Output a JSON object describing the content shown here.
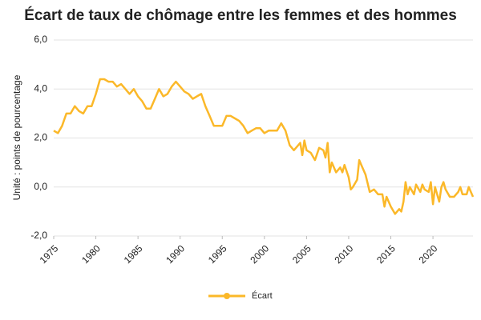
{
  "chart_data": {
    "type": "line",
    "title": "Écart de taux de chômage entre les femmes et des hommes",
    "y_label": "Unité : points de pourcentage",
    "x": [
      1975,
      1975.5,
      1976,
      1976.5,
      1977,
      1977.5,
      1978,
      1978.5,
      1979,
      1979.5,
      1980,
      1980.5,
      1981,
      1981.5,
      1982,
      1982.5,
      1983,
      1983.5,
      1984,
      1984.5,
      1985,
      1985.5,
      1986,
      1986.5,
      1987,
      1987.5,
      1988,
      1988.5,
      1989,
      1989.5,
      1990,
      1990.5,
      1991,
      1991.5,
      1992,
      1992.5,
      1993,
      1993.5,
      1994,
      1994.5,
      1995,
      1995.5,
      1996,
      1996.5,
      1997,
      1997.5,
      1998,
      1998.5,
      1999,
      1999.5,
      2000,
      2000.5,
      2001,
      2001.5,
      2002,
      2002.5,
      2003,
      2003.5,
      2004,
      2004.25,
      2004.5,
      2004.75,
      2005,
      2005.5,
      2006,
      2006.5,
      2007,
      2007.25,
      2007.5,
      2007.75,
      2008,
      2008.5,
      2009,
      2009.25,
      2009.5,
      2010,
      2010.25,
      2010.5,
      2011,
      2011.25,
      2011.5,
      2012,
      2012.5,
      2013,
      2013.5,
      2014,
      2014.25,
      2014.5,
      2015,
      2015.5,
      2016,
      2016.25,
      2016.5,
      2016.75,
      2017,
      2017.25,
      2017.75,
      2018,
      2018.5,
      2018.75,
      2019,
      2019.5,
      2019.75,
      2020,
      2020.25,
      2020.75,
      2021,
      2021.25,
      2021.5,
      2022,
      2022.5,
      2023,
      2023.25,
      2023.5,
      2024,
      2024.25,
      2024.75
    ],
    "series": [
      {
        "name": "Écart",
        "color": "#fbb829",
        "values": [
          2.3,
          2.2,
          2.5,
          3.0,
          3.0,
          3.3,
          3.1,
          3.0,
          3.3,
          3.3,
          3.8,
          4.4,
          4.4,
          4.3,
          4.3,
          4.1,
          4.2,
          4.0,
          3.8,
          4.0,
          3.7,
          3.5,
          3.2,
          3.2,
          3.6,
          4.0,
          3.7,
          3.8,
          4.1,
          4.3,
          4.1,
          3.9,
          3.8,
          3.6,
          3.7,
          3.8,
          3.3,
          2.9,
          2.5,
          2.5,
          2.5,
          2.9,
          2.9,
          2.8,
          2.7,
          2.5,
          2.2,
          2.3,
          2.4,
          2.4,
          2.2,
          2.3,
          2.3,
          2.3,
          2.6,
          2.3,
          1.7,
          1.5,
          1.7,
          1.8,
          1.3,
          1.9,
          1.5,
          1.4,
          1.1,
          1.6,
          1.5,
          1.2,
          1.8,
          0.6,
          1.0,
          0.6,
          0.8,
          0.6,
          0.9,
          0.4,
          -0.1,
          0.0,
          0.3,
          1.1,
          0.9,
          0.5,
          -0.2,
          -0.1,
          -0.3,
          -0.3,
          -0.8,
          -0.4,
          -0.8,
          -1.1,
          -0.9,
          -1.0,
          -0.6,
          0.2,
          -0.3,
          0.0,
          -0.3,
          0.1,
          -0.2,
          0.1,
          -0.1,
          -0.2,
          0.2,
          -0.7,
          0.0,
          -0.6,
          0.0,
          0.2,
          -0.1,
          -0.4,
          -0.4,
          -0.2,
          0.0,
          -0.3,
          -0.3,
          0.0,
          -0.4
        ]
      }
    ],
    "xlim": [
      1975,
      2024.75
    ],
    "xticks": [
      1975,
      1980,
      1985,
      1990,
      1995,
      2000,
      2005,
      2010,
      2015,
      2020
    ],
    "ylim": [
      -2,
      6
    ],
    "yticks": [
      {
        "value": -2,
        "label": "-2,0"
      },
      {
        "value": 0,
        "label": "0,0"
      },
      {
        "value": 2,
        "label": "2,0"
      },
      {
        "value": 4,
        "label": "4,0"
      },
      {
        "value": 6,
        "label": "6,0"
      }
    ],
    "grid": true,
    "legend": "bottom"
  }
}
